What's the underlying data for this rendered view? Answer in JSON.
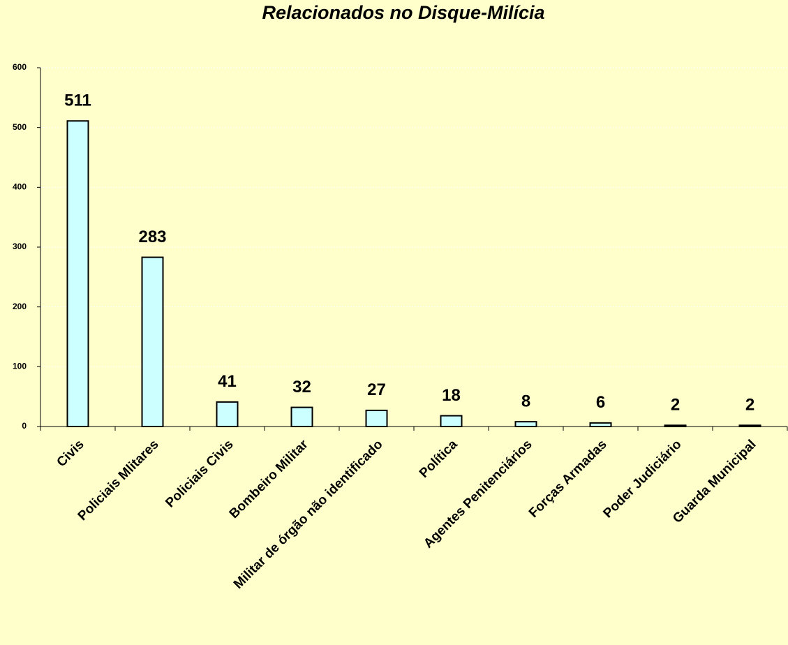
{
  "chart_data": {
    "type": "bar",
    "title": "Relacionados no Disque-Milícia",
    "categories": [
      "Civis",
      "Policiais Mlitares",
      "Policiais Civis",
      "Bombeiro Militar",
      "Militar de órgão não identificado",
      "Política",
      "Agentes Penitenciários",
      "Forças Armadas",
      "Poder Judiciário",
      "Guarda Municipal"
    ],
    "values": [
      511,
      283,
      41,
      32,
      27,
      18,
      8,
      6,
      2,
      2
    ],
    "color": "#CCFFFF",
    "ylim": [
      0,
      600
    ],
    "yticks": [
      0,
      100,
      200,
      300,
      400,
      500,
      600
    ],
    "grid": true
  }
}
